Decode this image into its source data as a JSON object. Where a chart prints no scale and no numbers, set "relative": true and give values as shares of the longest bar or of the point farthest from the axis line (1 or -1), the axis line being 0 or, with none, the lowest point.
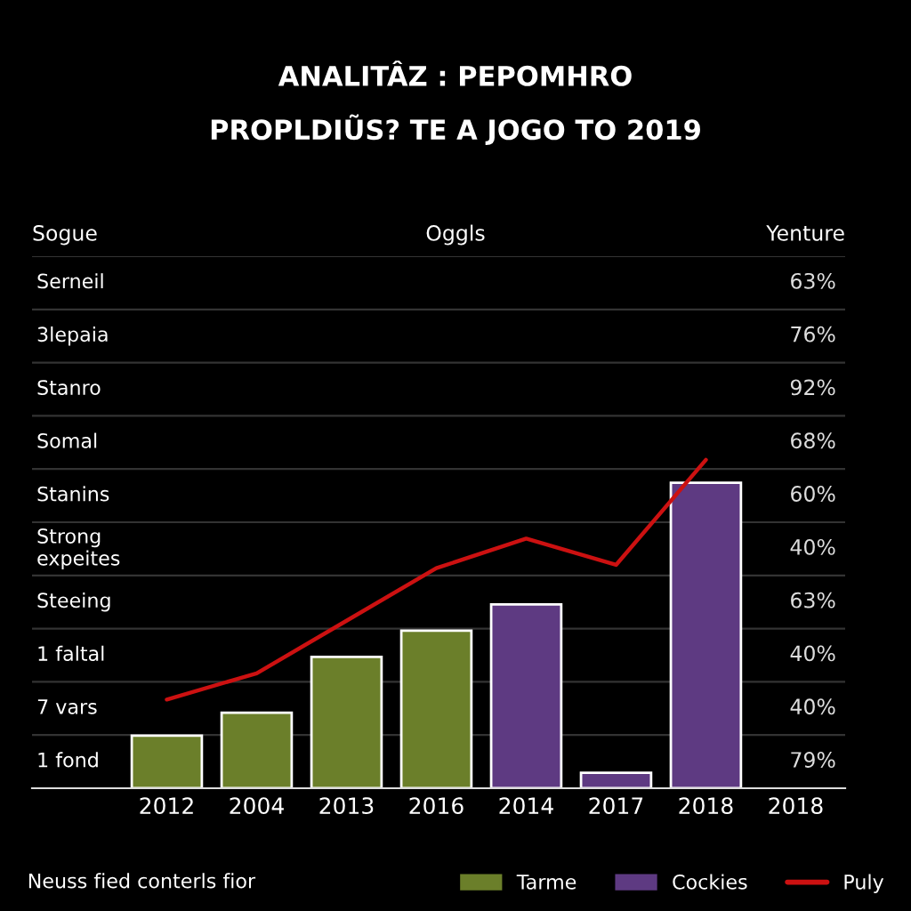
{
  "chart_data": {
    "type": "bar",
    "title": "ANALITÂZ : PEPOMHRO",
    "subtitle": "PROPLDIŨS? TE A JOGO TO 2019",
    "relative": true,
    "categories": [
      "2012",
      "2004",
      "2013",
      "2016",
      "2014",
      "2017",
      "2018",
      "2018"
    ],
    "series": [
      {
        "name": "Tarme",
        "color": "#6b7f2a",
        "values": [
          0.16,
          0.23,
          0.4,
          0.48,
          null,
          null,
          null,
          null
        ]
      },
      {
        "name": "Cockies",
        "color": "#5e3a82",
        "values": [
          null,
          null,
          null,
          null,
          0.56,
          0.047,
          0.93,
          null
        ]
      },
      {
        "name": "Puly",
        "type": "line",
        "color": "#cc1111",
        "values": [
          0.27,
          0.35,
          0.51,
          0.67,
          0.76,
          0.68,
          1.0,
          null
        ]
      }
    ],
    "annotations": [
      "Sogue",
      "Oggls",
      "Yenture",
      "Serneil",
      "3lepaia",
      "Stanro",
      "Somal",
      "Stanins",
      "Strong\nexpeites",
      "Steeing",
      "1 faltal",
      "7 vars",
      "1 fond",
      "63%",
      "76%",
      "92%",
      "68%",
      "60%",
      "40%",
      "63%",
      "40%",
      "40%",
      "79%",
      "Neuss fied conterls fior"
    ],
    "legend": "bottom"
  }
}
